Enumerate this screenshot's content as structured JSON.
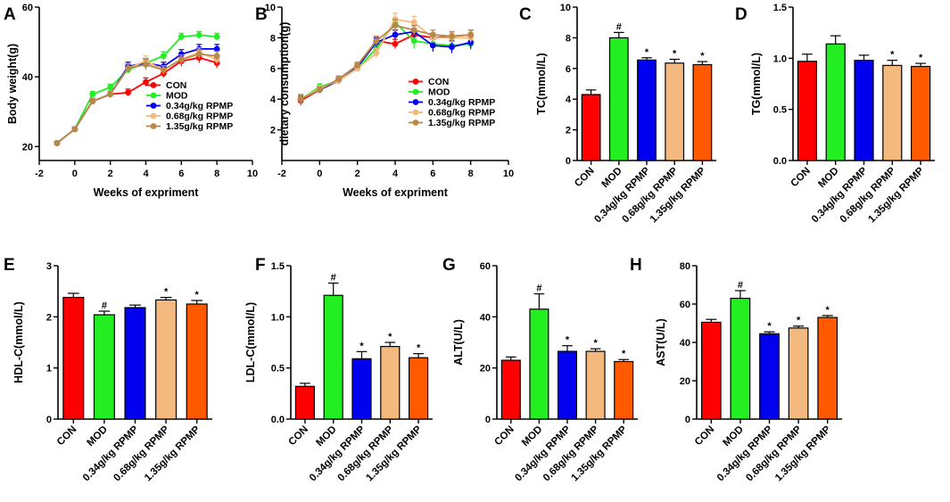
{
  "groups": [
    "CON",
    "MOD",
    "0.34g/kg RPMP",
    "0.68g/kg RPMP",
    "1.35g/kg RPMP"
  ],
  "colors": {
    "CON": "#ff0000",
    "MOD": "#22ee22",
    "0.34g/kg RPMP": "#0000ee",
    "0.68g/kg RPMP": "#f4b97e",
    "1.35g/kg RPMP": "#ff5a00",
    "line_1.35": "#b8884a"
  },
  "chart_data": [
    {
      "panel": "A",
      "type": "line",
      "xlabel": "Weeks of expriment",
      "ylabel": "Body weight(g)",
      "xlim": [
        -2,
        10
      ],
      "xticks": [
        -2,
        0,
        2,
        4,
        6,
        8,
        10
      ],
      "ylim": [
        16,
        60
      ],
      "yticks": [
        20,
        40,
        60
      ],
      "legend": [
        "CON",
        "MOD",
        "0.34g/kg RPMP",
        "0.68g/kg RPMP",
        "1.35g/kg RPMP"
      ],
      "series": [
        {
          "name": "CON",
          "x": [
            -1,
            0,
            1,
            2,
            3,
            4,
            5,
            6,
            7,
            8
          ],
          "values": [
            21,
            25,
            33,
            35,
            35.5,
            38.5,
            41,
            44.5,
            45.5,
            44
          ],
          "err": [
            0.5,
            0.6,
            0.8,
            0.9,
            1,
            1.2,
            1.2,
            1.5,
            1.5,
            1.5
          ]
        },
        {
          "name": "MOD",
          "x": [
            -1,
            0,
            1,
            2,
            3,
            4,
            5,
            6,
            7,
            8
          ],
          "values": [
            21,
            25,
            35,
            37,
            42,
            44,
            46,
            51.5,
            52,
            51.5
          ],
          "err": [
            0.5,
            0.6,
            0.8,
            0.9,
            1,
            1.2,
            1.2,
            1,
            1,
            1
          ]
        },
        {
          "name": "0.34g/kg RPMP",
          "x": [
            -1,
            0,
            1,
            2,
            3,
            4,
            5,
            6,
            7,
            8
          ],
          "values": [
            21,
            25,
            33,
            35,
            43,
            44,
            43,
            46.5,
            48,
            48
          ],
          "err": [
            0.5,
            0.6,
            0.8,
            0.9,
            1.2,
            1.2,
            1.2,
            1.3,
            1.3,
            1.3
          ]
        },
        {
          "name": "0.68g/kg RPMP",
          "x": [
            -1,
            0,
            1,
            2,
            3,
            4,
            5,
            6,
            7,
            8
          ],
          "values": [
            21,
            25,
            33,
            35,
            42.5,
            44.5,
            42,
            45,
            47,
            45
          ],
          "err": [
            0.5,
            0.6,
            0.8,
            0.9,
            1.2,
            1.5,
            1.2,
            1.3,
            1.3,
            1.3
          ]
        },
        {
          "name": "1.35g/kg RPMP",
          "x": [
            -1,
            0,
            1,
            2,
            3,
            4,
            5,
            6,
            7,
            8
          ],
          "values": [
            21,
            25,
            33,
            35,
            42.5,
            43.5,
            42,
            45,
            46.5,
            46
          ],
          "err": [
            0.5,
            0.6,
            0.8,
            0.9,
            1.2,
            1.5,
            1.2,
            1.3,
            1.3,
            1.3
          ]
        }
      ]
    },
    {
      "panel": "B",
      "type": "line",
      "xlabel": "Weeks of expriment",
      "ylabel": "dietary consumption(g)",
      "xlim": [
        -2,
        10
      ],
      "xticks": [
        -2,
        0,
        2,
        4,
        6,
        8,
        10
      ],
      "ylim": [
        0,
        10
      ],
      "yticks": [
        2,
        4,
        6,
        8,
        10
      ],
      "legend": [
        "CON",
        "MOD",
        "0.34g/kg RPMP",
        "0.68g/kg RPMP",
        "1.35g/kg RPMP"
      ],
      "series": [
        {
          "name": "CON",
          "x": [
            -1,
            0,
            1,
            2,
            3,
            4,
            5,
            6,
            7,
            8
          ],
          "values": [
            3.9,
            4.6,
            5.3,
            6.2,
            7.8,
            7.6,
            8.2,
            8,
            8.1,
            8.2
          ],
          "err": [
            0.3,
            0.2,
            0.2,
            0.2,
            0.3,
            0.3,
            0.4,
            0.3,
            0.3,
            0.3
          ]
        },
        {
          "name": "MOD",
          "x": [
            -1,
            0,
            1,
            2,
            3,
            4,
            5,
            6,
            7,
            8
          ],
          "values": [
            4,
            4.8,
            5.2,
            6,
            7.3,
            9,
            7.8,
            7.6,
            7.5,
            7.6
          ],
          "err": [
            0.3,
            0.2,
            0.2,
            0.2,
            0.3,
            0.3,
            0.5,
            0.4,
            0.4,
            0.4
          ]
        },
        {
          "name": "0.34g/kg RPMP",
          "x": [
            -1,
            0,
            1,
            2,
            3,
            4,
            5,
            6,
            7,
            8
          ],
          "values": [
            4,
            4.6,
            5.2,
            6.1,
            7.7,
            8.2,
            8.4,
            7.5,
            7.4,
            7.7
          ],
          "err": [
            0.3,
            0.2,
            0.2,
            0.2,
            0.3,
            0.3,
            0.4,
            0.4,
            0.4,
            0.4
          ]
        },
        {
          "name": "0.68g/kg RPMP",
          "x": [
            -1,
            0,
            1,
            2,
            3,
            4,
            5,
            6,
            7,
            8
          ],
          "values": [
            4,
            4.7,
            5.2,
            6,
            7,
            9.2,
            9,
            8,
            8,
            8
          ],
          "err": [
            0.3,
            0.2,
            0.2,
            0.2,
            0.3,
            0.4,
            0.4,
            0.3,
            0.3,
            0.3
          ]
        },
        {
          "name": "1.35g/kg RPMP",
          "x": [
            -1,
            0,
            1,
            2,
            3,
            4,
            5,
            6,
            7,
            8
          ],
          "values": [
            4,
            4.6,
            5.3,
            6.2,
            7.8,
            8.8,
            8.5,
            8.2,
            8.1,
            8.2
          ],
          "err": [
            0.3,
            0.2,
            0.2,
            0.2,
            0.3,
            0.4,
            0.3,
            0.3,
            0.3,
            0.3
          ]
        }
      ]
    },
    {
      "panel": "C",
      "type": "bar",
      "ylabel": "TC(mmol/L)",
      "ylim": [
        0,
        10
      ],
      "yticks": [
        0,
        2,
        4,
        6,
        8,
        10
      ],
      "tick_decimals": 0,
      "categories": [
        "CON",
        "MOD",
        "0.34g/kg RPMP",
        "0.68g/kg RPMP",
        "1.35g/kg RPMP"
      ],
      "values": [
        4.3,
        8.0,
        6.55,
        6.35,
        6.25
      ],
      "err": [
        0.3,
        0.35,
        0.15,
        0.25,
        0.2
      ],
      "marks": [
        "",
        "#",
        "*",
        "*",
        "*"
      ]
    },
    {
      "panel": "D",
      "type": "bar",
      "ylabel": "TG(mmol/L)",
      "ylim": [
        0,
        1.5
      ],
      "yticks": [
        0.0,
        0.5,
        1.0,
        1.5
      ],
      "tick_decimals": 1,
      "categories": [
        "CON",
        "MOD",
        "0.34g/kg RPMP",
        "0.68g/kg RPMP",
        "1.35g/kg RPMP"
      ],
      "values": [
        0.97,
        1.14,
        0.98,
        0.93,
        0.92
      ],
      "err": [
        0.07,
        0.08,
        0.05,
        0.05,
        0.03
      ],
      "marks": [
        "",
        "",
        "",
        "*",
        "*"
      ]
    },
    {
      "panel": "E",
      "type": "bar",
      "ylabel": "HDL-C(mmol/L)",
      "ylim": [
        0,
        3
      ],
      "yticks": [
        0,
        1,
        2,
        3
      ],
      "tick_decimals": 0,
      "categories": [
        "CON",
        "MOD",
        "0.34g/kg RPMP",
        "0.68g/kg RPMP",
        "1.35g/kg RPMP"
      ],
      "values": [
        2.38,
        2.04,
        2.18,
        2.33,
        2.25
      ],
      "err": [
        0.08,
        0.07,
        0.05,
        0.05,
        0.07
      ],
      "marks": [
        "",
        "#",
        "",
        "*",
        "*"
      ]
    },
    {
      "panel": "F",
      "type": "bar",
      "ylabel": "LDL-C(mmol/L)",
      "ylim": [
        0,
        1.5
      ],
      "yticks": [
        0.0,
        0.5,
        1.0,
        1.5
      ],
      "tick_decimals": 1,
      "categories": [
        "CON",
        "MOD",
        "0.34g/kg RPMP",
        "0.68g/kg RPMP",
        "1.35g/kg RPMP"
      ],
      "values": [
        0.32,
        1.21,
        0.59,
        0.71,
        0.6
      ],
      "err": [
        0.03,
        0.12,
        0.07,
        0.04,
        0.04
      ],
      "marks": [
        "",
        "#",
        "*",
        "*",
        "*"
      ]
    },
    {
      "panel": "G",
      "type": "bar",
      "ylabel": "ALT(U/L)",
      "ylim": [
        0,
        60
      ],
      "yticks": [
        0,
        20,
        40,
        60
      ],
      "tick_decimals": 0,
      "categories": [
        "CON",
        "MOD",
        "0.34g/kg RPMP",
        "0.68g/kg RPMP",
        "1.35g/kg RPMP"
      ],
      "values": [
        23,
        43,
        26.5,
        26.5,
        22.5
      ],
      "err": [
        1.3,
        6,
        2.2,
        1,
        0.8
      ],
      "marks": [
        "",
        "#",
        "*",
        "*",
        "*"
      ]
    },
    {
      "panel": "H",
      "type": "bar",
      "ylabel": "AST(U/L)",
      "ylim": [
        0,
        80
      ],
      "yticks": [
        0,
        20,
        40,
        60,
        80
      ],
      "tick_decimals": 0,
      "categories": [
        "CON",
        "MOD",
        "0.34g/kg RPMP",
        "0.68g/kg RPMP",
        "1.35g/kg RPMP"
      ],
      "values": [
        50.5,
        63,
        44.5,
        47.5,
        53
      ],
      "err": [
        1.5,
        4,
        1,
        1,
        1
      ],
      "marks": [
        "",
        "#",
        "*",
        "*",
        "*"
      ]
    }
  ]
}
